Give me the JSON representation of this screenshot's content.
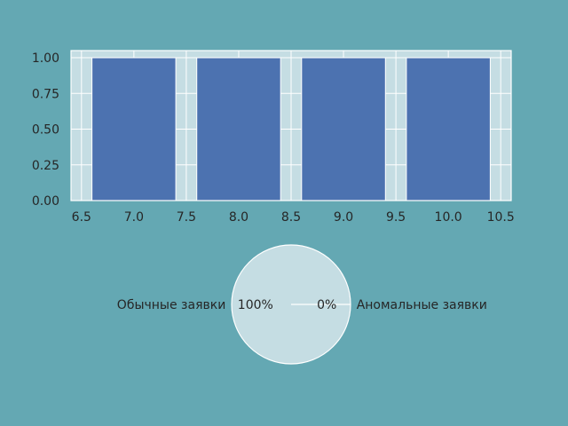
{
  "figure": {
    "background": "#64a8b3"
  },
  "chart_data": [
    {
      "type": "bar",
      "x": [
        7,
        8,
        9,
        10
      ],
      "values": [
        1,
        1,
        1,
        1
      ],
      "bar_width": 0.8,
      "xlim": [
        6.4,
        10.6
      ],
      "ylim": [
        0,
        1.05
      ],
      "xticks": [
        "6.5",
        "7.0",
        "7.5",
        "8.0",
        "8.5",
        "9.0",
        "9.5",
        "10.0",
        "10.5"
      ],
      "xtick_values": [
        6.5,
        7.0,
        7.5,
        8.0,
        8.5,
        9.0,
        9.5,
        10.0,
        10.5
      ],
      "yticks": [
        "0.00",
        "0.25",
        "0.50",
        "0.75",
        "1.00"
      ],
      "ytick_values": [
        0,
        0.25,
        0.5,
        0.75,
        1.0
      ],
      "grid": true,
      "bar_color": "#4c72b0",
      "axes_background": "#c5dde3",
      "title": "",
      "xlabel": "",
      "ylabel": ""
    },
    {
      "type": "pie",
      "labels": [
        "Обычные заявки",
        "Аномальные заявки"
      ],
      "values": [
        100,
        0
      ],
      "pct_labels": [
        "100%",
        "0%"
      ],
      "slice_color": "#c5dde3",
      "title": ""
    }
  ]
}
